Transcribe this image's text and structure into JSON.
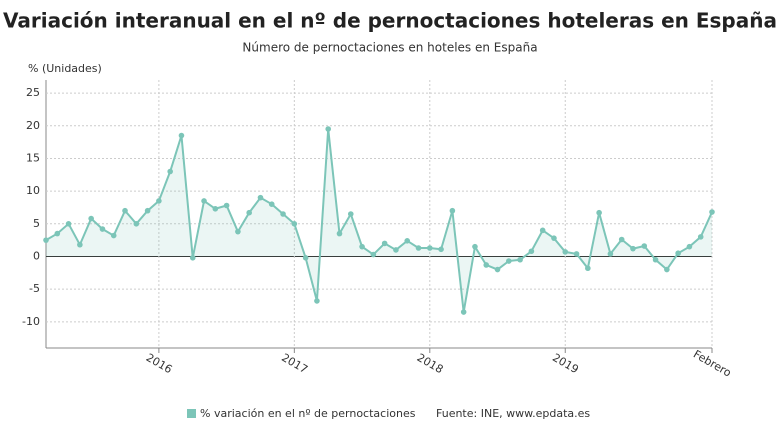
{
  "chart_data": {
    "type": "line",
    "title": "Variación interanual en el nº de pernoctaciones hoteleras en España",
    "subtitle": "Número de pernoctaciones en hoteles en España",
    "y_label": "% (Unidades)",
    "source": "Fuente: INE, www.epdata.es",
    "categories": [
      null,
      null,
      null,
      null,
      null,
      null,
      null,
      null,
      null,
      null,
      "2016",
      null,
      null,
      null,
      null,
      null,
      null,
      null,
      null,
      null,
      null,
      null,
      "2017",
      null,
      null,
      null,
      null,
      null,
      null,
      null,
      null,
      null,
      null,
      null,
      "2018",
      null,
      null,
      null,
      null,
      null,
      null,
      null,
      null,
      null,
      null,
      null,
      "2019",
      null,
      null,
      null,
      null,
      null,
      null,
      null,
      null,
      null,
      null,
      null,
      null,
      "Febrero"
    ],
    "series": [
      {
        "name": "% variación en el nº de pernoctaciones",
        "color": "#7cc5b8",
        "values": [
          2.5,
          3.5,
          5,
          1.8,
          5.8,
          4.2,
          3.2,
          7,
          5,
          7,
          8.5,
          13,
          18.5,
          -0.2,
          8.5,
          7.3,
          7.8,
          3.8,
          6.7,
          9,
          8,
          6.5,
          5,
          -0.2,
          -6.8,
          19.5,
          3.5,
          6.5,
          1.5,
          0.3,
          2,
          1,
          2.4,
          1.3,
          1.3,
          1.1,
          7,
          -8.5,
          1.5,
          -1.3,
          -2,
          -0.7,
          -0.5,
          0.8,
          4,
          2.8,
          0.7,
          0.4,
          -1.8,
          6.7,
          0.4,
          2.6,
          1.2,
          1.6,
          -0.5,
          -2,
          0.5,
          1.5,
          3,
          6.8
        ]
      }
    ],
    "ylim": [
      -14,
      27
    ],
    "yticks": [
      -10,
      -5,
      0,
      5,
      10,
      15,
      20,
      25
    ],
    "grid": true
  }
}
